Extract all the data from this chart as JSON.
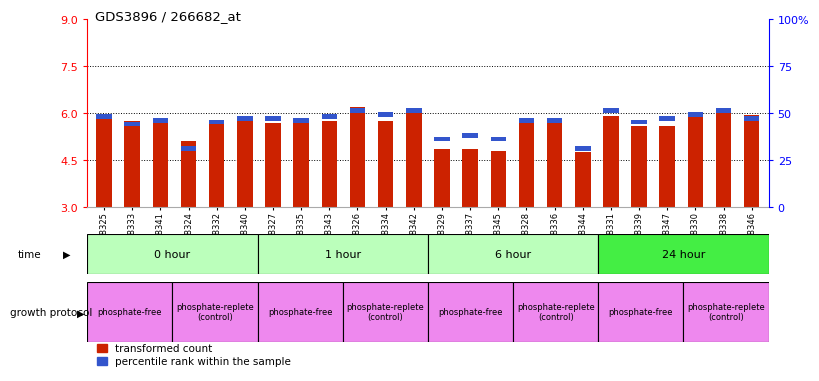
{
  "title": "GDS3896 / 266682_at",
  "samples": [
    "GSM618325",
    "GSM618333",
    "GSM618341",
    "GSM618324",
    "GSM618332",
    "GSM618340",
    "GSM618327",
    "GSM618335",
    "GSM618343",
    "GSM618326",
    "GSM618334",
    "GSM618342",
    "GSM618329",
    "GSM618337",
    "GSM618345",
    "GSM618328",
    "GSM618336",
    "GSM618344",
    "GSM618331",
    "GSM618339",
    "GSM618347",
    "GSM618330",
    "GSM618338",
    "GSM618346"
  ],
  "transformed_count": [
    5.95,
    5.75,
    5.7,
    5.1,
    5.75,
    5.75,
    5.7,
    5.75,
    5.75,
    6.2,
    5.75,
    6.15,
    4.85,
    4.85,
    4.8,
    5.75,
    5.75,
    4.75,
    5.9,
    5.6,
    5.6,
    5.9,
    6.05,
    5.95
  ],
  "percentile_rank": [
    47,
    43,
    45,
    30,
    44,
    46,
    46,
    45,
    47,
    50,
    48,
    50,
    35,
    37,
    35,
    45,
    45,
    30,
    50,
    44,
    46,
    48,
    50,
    46
  ],
  "ylim_left": [
    3,
    9
  ],
  "ylim_right": [
    0,
    100
  ],
  "yticks_left": [
    3,
    4.5,
    6,
    7.5,
    9
  ],
  "yticks_right": [
    0,
    25,
    50,
    75,
    100
  ],
  "ytick_labels_right": [
    "0",
    "25",
    "50",
    "75",
    "100%"
  ],
  "bar_color_red": "#cc2200",
  "bar_color_blue": "#3355cc",
  "bg_color": "#ffffff",
  "time_groups": [
    {
      "label": "0 hour",
      "start": 0,
      "end": 6,
      "color": "#bbffbb"
    },
    {
      "label": "1 hour",
      "start": 6,
      "end": 12,
      "color": "#bbffbb"
    },
    {
      "label": "6 hour",
      "start": 12,
      "end": 18,
      "color": "#bbffbb"
    },
    {
      "label": "24 hour",
      "start": 18,
      "end": 24,
      "color": "#44ee44"
    }
  ],
  "protocol_groups": [
    {
      "label": "phosphate-free",
      "start": 0,
      "end": 3,
      "color": "#ee88ee"
    },
    {
      "label": "phosphate-replete\n(control)",
      "start": 3,
      "end": 6,
      "color": "#ee88ee"
    },
    {
      "label": "phosphate-free",
      "start": 6,
      "end": 9,
      "color": "#ee88ee"
    },
    {
      "label": "phosphate-replete\n(control)",
      "start": 9,
      "end": 12,
      "color": "#ee88ee"
    },
    {
      "label": "phosphate-free",
      "start": 12,
      "end": 15,
      "color": "#ee88ee"
    },
    {
      "label": "phosphate-replete\n(control)",
      "start": 15,
      "end": 18,
      "color": "#ee88ee"
    },
    {
      "label": "phosphate-free",
      "start": 18,
      "end": 21,
      "color": "#ee88ee"
    },
    {
      "label": "phosphate-replete\n(control)",
      "start": 21,
      "end": 24,
      "color": "#ee88ee"
    }
  ],
  "legend_red": "transformed count",
  "legend_blue": "percentile rank within the sample",
  "dotted_grid_values": [
    4.5,
    6.0,
    7.5
  ],
  "bar_width": 0.55
}
